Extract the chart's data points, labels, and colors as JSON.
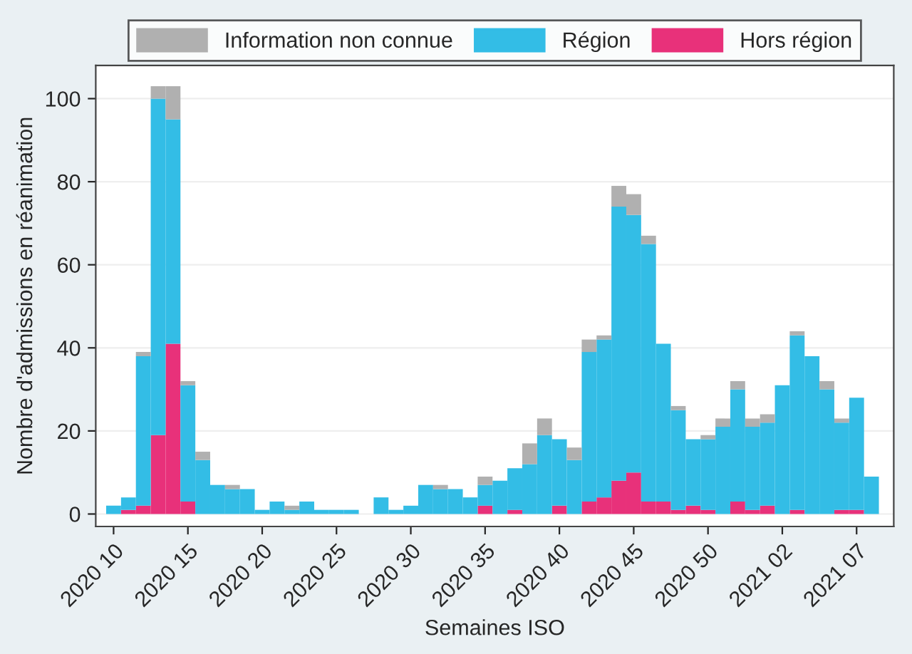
{
  "chart_data": {
    "type": "bar",
    "stacked": true,
    "xlabel": "Semaines ISO",
    "ylabel": "Nombre d'admissions en réanimation",
    "categories": [
      "2020 10",
      null,
      null,
      null,
      null,
      "2020 15",
      null,
      null,
      null,
      null,
      "2020 20",
      null,
      null,
      null,
      null,
      "2020 25",
      null,
      null,
      null,
      null,
      "2020 30",
      null,
      null,
      null,
      null,
      "2020 35",
      null,
      null,
      null,
      null,
      "2020 40",
      null,
      null,
      null,
      null,
      "2020 45",
      null,
      null,
      null,
      null,
      "2020 50",
      null,
      null,
      null,
      null,
      "2021 02",
      null,
      null,
      null,
      null,
      "2021 07",
      null
    ],
    "series": [
      {
        "name": "Hors région",
        "color": "#e8317a",
        "values": [
          0,
          1,
          2,
          19,
          41,
          3,
          0,
          0,
          0,
          0,
          0,
          0,
          0,
          0,
          0,
          0,
          0,
          0,
          0,
          0,
          0,
          0,
          0,
          0,
          0,
          2,
          0,
          1,
          0,
          0,
          2,
          0,
          3,
          4,
          8,
          10,
          3,
          3,
          1,
          2,
          1,
          0,
          3,
          1,
          2,
          0,
          1,
          0,
          0,
          1,
          1,
          0
        ]
      },
      {
        "name": "Région",
        "color": "#33bde6",
        "values": [
          2,
          3,
          36,
          81,
          54,
          28,
          13,
          7,
          6,
          6,
          1,
          3,
          1,
          3,
          1,
          1,
          1,
          0,
          4,
          1,
          2,
          7,
          6,
          6,
          4,
          5,
          8,
          10,
          12,
          19,
          16,
          13,
          36,
          38,
          66,
          62,
          62,
          38,
          24,
          16,
          17,
          21,
          27,
          20,
          20,
          31,
          42,
          38,
          30,
          21,
          27,
          9
        ]
      },
      {
        "name": "Information non connue",
        "color": "#b0b0b0",
        "values": [
          0,
          0,
          1,
          3,
          8,
          1,
          2,
          0,
          1,
          0,
          0,
          0,
          1,
          0,
          0,
          0,
          0,
          0,
          0,
          0,
          0,
          0,
          1,
          0,
          0,
          2,
          0,
          0,
          5,
          4,
          0,
          3,
          3,
          1,
          5,
          5,
          2,
          0,
          1,
          0,
          1,
          2,
          2,
          2,
          2,
          0,
          1,
          0,
          2,
          1,
          0,
          0
        ]
      }
    ],
    "ylim": [
      -3,
      108
    ],
    "yticks": [
      0,
      20,
      40,
      60,
      80,
      100
    ],
    "grid": "y",
    "legend": "top"
  }
}
